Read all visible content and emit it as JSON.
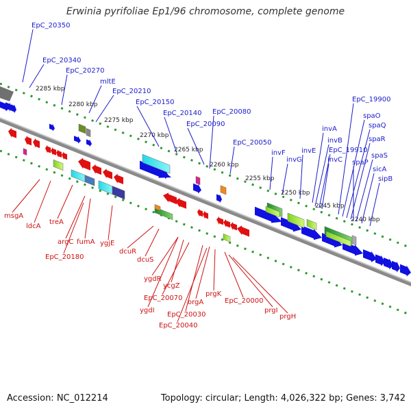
{
  "title": "Erwinia pyrifoliae Ep1/96 chromosome, complete genome",
  "footer": {
    "accession": "Accession: NC_012214",
    "summary": "Topology: circular; Length: 4,026,322 bp; Genes: 3,742"
  },
  "colors": {
    "top_label": "#1a1acc",
    "bottom_label": "#cc1111",
    "backbone": "#8a8a8a",
    "dots": "#2a9a2a",
    "forward_gene": "#1010e0",
    "reverse_gene": "#e01010"
  },
  "scale_ticks": [
    "2285 kbp",
    "2280 kbp",
    "2275 kbp",
    "2270 kbp",
    "2265 kbp",
    "2260 kbp",
    "2255 kbp",
    "2250 kbp",
    "2245 kbp",
    "2240 kbp"
  ],
  "top_labels": [
    "EpC_20350",
    "EpC_20340",
    "EpC_20270",
    "mltE",
    "EpC_20210",
    "EpC_20150",
    "EpC_20140",
    "EpC_20090",
    "EpC_20080",
    "EpC_20050",
    "invF",
    "invG",
    "invE",
    "invA",
    "invB",
    "EpC_19910",
    "invC",
    "EpC_19900",
    "spaO",
    "spaQ",
    "spaR",
    "spaS",
    "spaP",
    "sicA",
    "sipB"
  ],
  "bottom_labels": [
    "msgA",
    "ldcA",
    "treA",
    "argC",
    "fumA",
    "EpC_20180",
    "ygjE",
    "dcuR",
    "dcuS",
    "ygdR",
    "ycgZ",
    "EpC_20070",
    "ygdI",
    "orgA",
    "EpC_20030",
    "prgK",
    "EpC_20040",
    "EpC_20000",
    "prgI",
    "prgH"
  ]
}
